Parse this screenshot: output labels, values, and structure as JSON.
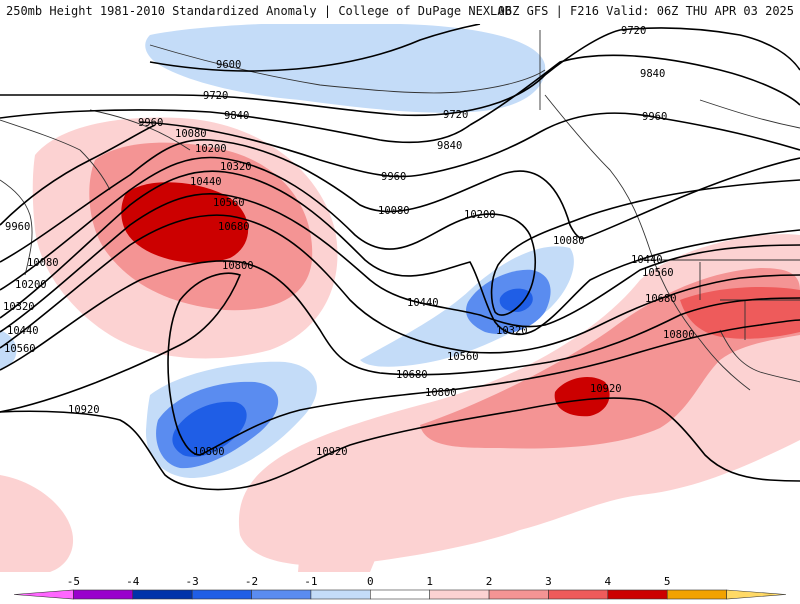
{
  "header": {
    "left": "250mb Height 1981-2010 Standardized Anomaly | College of DuPage NEXLAB",
    "right": "06Z GFS | F216 Valid: 06Z THU APR 03 2025"
  },
  "contour_labels": [
    "9720",
    "9840",
    "9960",
    "9600",
    "9720",
    "9840",
    "9960",
    "9720",
    "9840",
    "9960",
    "10080",
    "10200",
    "10320",
    "10440",
    "10560",
    "10680",
    "10800",
    "10920",
    "9960",
    "10080",
    "10200",
    "10320",
    "10440",
    "10560",
    "10080",
    "10200",
    "10320",
    "10440",
    "10560",
    "10680",
    "10800",
    "10920",
    "10080",
    "10440",
    "10560",
    "10680",
    "10800",
    "10920",
    "10800"
  ],
  "colorbar": {
    "ticks": [
      "-5",
      "-4",
      "-3",
      "-2",
      "-1",
      "0",
      "1",
      "2",
      "3",
      "4",
      "5"
    ],
    "colors": [
      "#ff66ff",
      "#9900cc",
      "#0033aa",
      "#1f5ee6",
      "#5a8cf0",
      "#c4dcf8",
      "#ffffff",
      "#fcd2d2",
      "#f49494",
      "#ee5b5b",
      "#cc0000",
      "#f2a200",
      "#ffd966"
    ]
  }
}
